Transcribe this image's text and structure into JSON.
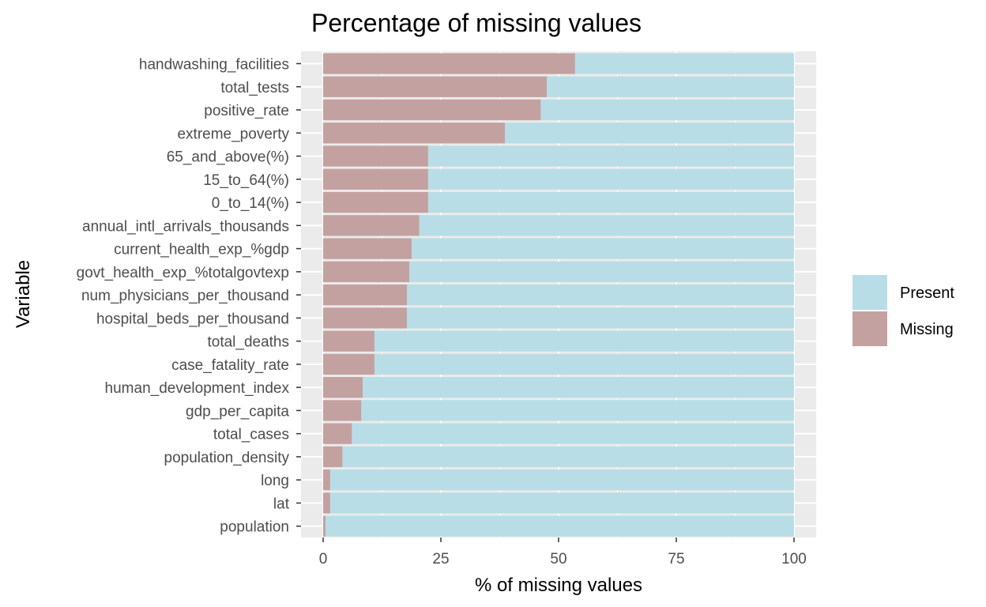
{
  "chart_data": {
    "type": "bar",
    "orientation": "horizontal",
    "stacked": true,
    "title": "Percentage of missing values",
    "xlabel": "% of missing values",
    "ylabel": "Variable",
    "xlim": [
      0,
      100
    ],
    "xticks": [
      0,
      25,
      50,
      75,
      100
    ],
    "grid": true,
    "legend_position": "right",
    "categories": [
      "handwashing_facilities",
      "total_tests",
      "positive_rate",
      "extreme_poverty",
      "65_and_above(%)",
      "15_to_64(%)",
      "0_to_14(%)",
      "annual_intl_arrivals_thousands",
      "current_health_exp_%gdp",
      "govt_health_exp_%totalgovtexp",
      "num_physicians_per_thousand",
      "hospital_beds_per_thousand",
      "total_deaths",
      "case_fatality_rate",
      "human_development_index",
      "gdp_per_capita",
      "total_cases",
      "population_density",
      "long",
      "lat",
      "population"
    ],
    "series": [
      {
        "name": "Missing",
        "color": "#c4a1a1",
        "values": [
          53.5,
          47.5,
          46.2,
          38.6,
          22.3,
          22.3,
          22.3,
          20.4,
          18.8,
          18.3,
          17.8,
          17.8,
          10.9,
          10.9,
          8.4,
          8.1,
          6.1,
          4.1,
          1.5,
          1.5,
          0.5
        ]
      },
      {
        "name": "Present",
        "color": "#b9dde6",
        "values": [
          46.5,
          52.5,
          53.8,
          61.4,
          77.7,
          77.7,
          77.7,
          79.6,
          81.2,
          81.7,
          82.2,
          82.2,
          89.1,
          89.1,
          91.6,
          91.9,
          93.9,
          95.9,
          98.5,
          98.5,
          99.5
        ]
      }
    ],
    "legend": [
      {
        "name": "Present",
        "color": "#b9dde6"
      },
      {
        "name": "Missing",
        "color": "#c4a1a1"
      }
    ],
    "panel_background": "#ebebeb",
    "grid_color": "#ffffff"
  }
}
